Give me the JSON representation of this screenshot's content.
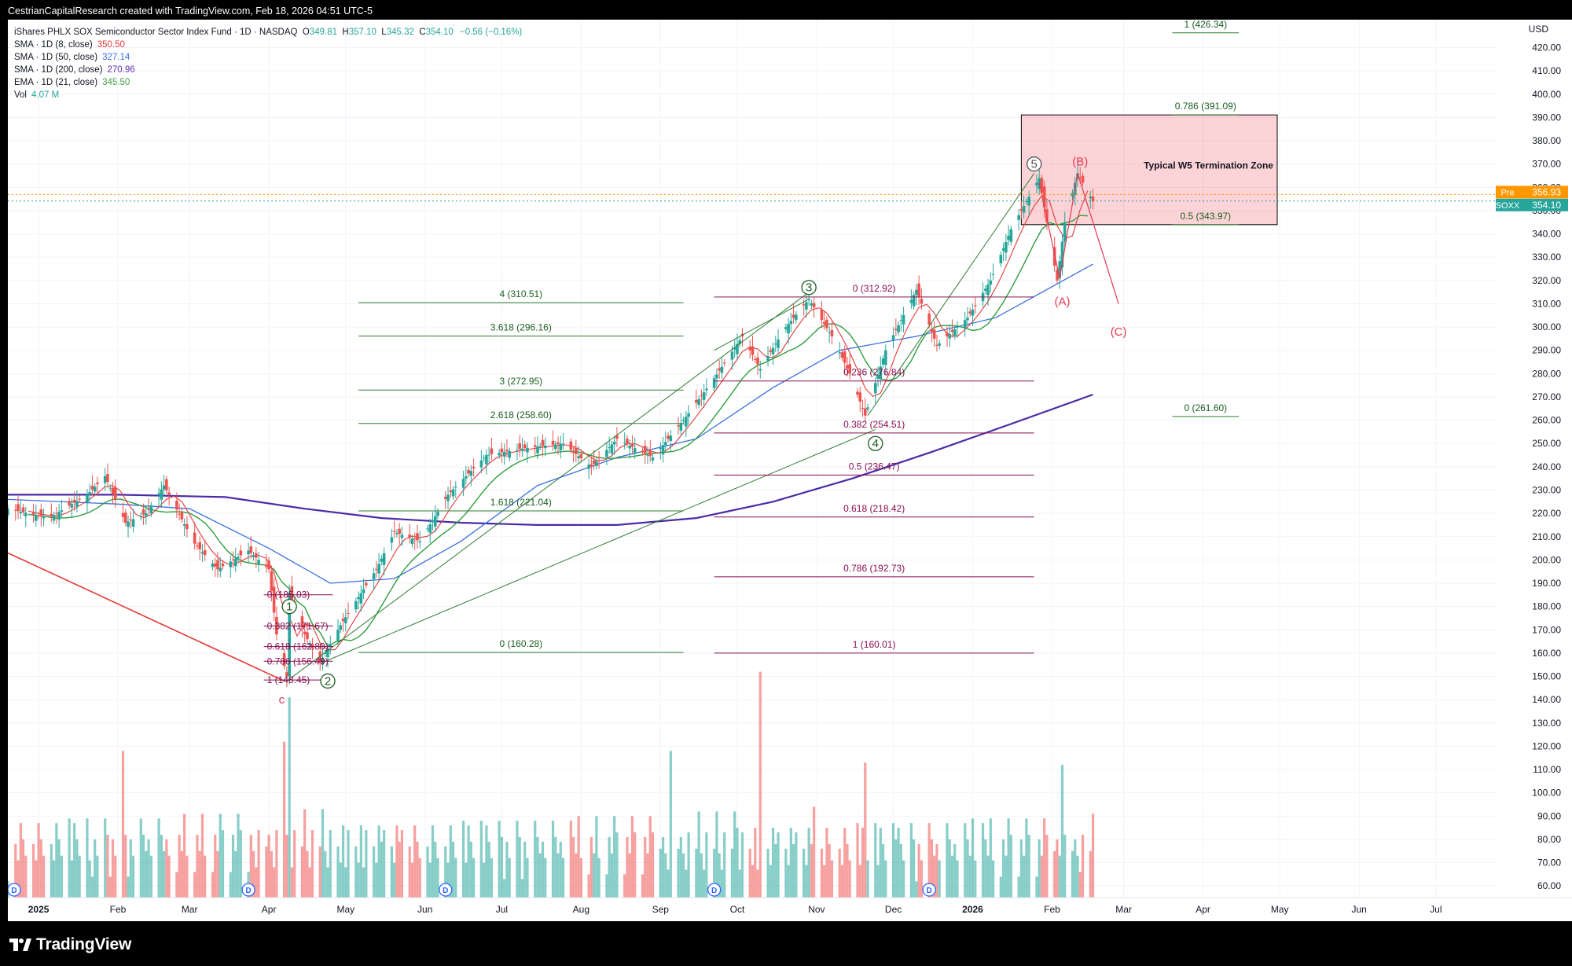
{
  "header": {
    "attribution": "CestrianCapitalResearch created with TradingView.com, Feb 18, 2026 04:51 UTC-5"
  },
  "legend": {
    "title": "iShares PHLX SOX Semiconductor Sector Index Fund · 1D · NASDAQ",
    "ohlc": {
      "o": "349.81",
      "h": "357.10",
      "l": "345.32",
      "c": "354.10",
      "chg": "−0.56 (−0.16%)"
    },
    "indicators": [
      {
        "label": "SMA · 1D (8, close)",
        "value": "350.50",
        "color": "#e53935"
      },
      {
        "label": "SMA · 1D (50, close)",
        "value": "327.14",
        "color": "#3b6fe0"
      },
      {
        "label": "SMA · 1D (200, close)",
        "value": "270.96",
        "color": "#5e35b1"
      },
      {
        "label": "EMA · 1D (21, close)",
        "value": "345.50",
        "color": "#43a047"
      },
      {
        "label": "Vol",
        "value": "4.07 M",
        "color": "#26a69a"
      }
    ]
  },
  "price_tags": {
    "pre_label": "Pre",
    "pre_value": "356.93",
    "sym_label": "SOXX",
    "sym_value": "354.10"
  },
  "zone_label": "Typical W5 Termination Zone",
  "footer": {
    "brand": "TradingView"
  },
  "chart_data": {
    "type": "candlestick",
    "symbol": "SOXX",
    "currency": "USD",
    "y_axis_ticks": [
      60,
      70,
      80,
      90,
      100,
      110,
      120,
      130,
      140,
      150,
      160,
      170,
      180,
      190,
      200,
      210,
      220,
      230,
      240,
      250,
      260,
      270,
      280,
      290,
      300,
      310,
      320,
      330,
      340,
      350,
      360,
      370,
      380,
      390,
      400,
      410,
      420
    ],
    "x_axis_labels": [
      {
        "date": "2025-01-01",
        "label": "2025",
        "bold": true
      },
      {
        "date": "2025-02-01",
        "label": "Feb"
      },
      {
        "date": "2025-03-01",
        "label": "Mar"
      },
      {
        "date": "2025-04-01",
        "label": "Apr"
      },
      {
        "date": "2025-05-01",
        "label": "May"
      },
      {
        "date": "2025-06-01",
        "label": "Jun"
      },
      {
        "date": "2025-07-01",
        "label": "Jul"
      },
      {
        "date": "2025-08-01",
        "label": "Aug"
      },
      {
        "date": "2025-09-01",
        "label": "Sep"
      },
      {
        "date": "2025-10-01",
        "label": "Oct"
      },
      {
        "date": "2025-11-01",
        "label": "Nov"
      },
      {
        "date": "2025-12-01",
        "label": "Dec"
      },
      {
        "date": "2026-01-01",
        "label": "2026",
        "bold": true
      },
      {
        "date": "2026-02-01",
        "label": "Feb"
      },
      {
        "date": "2026-03-01",
        "label": "Mar"
      },
      {
        "date": "2026-04-01",
        "label": "Apr"
      },
      {
        "date": "2026-05-01",
        "label": "May"
      },
      {
        "date": "2026-06-01",
        "label": "Jun"
      },
      {
        "date": "2026-07-01",
        "label": "Jul"
      }
    ],
    "x_range": [
      "2024-12-20",
      "2026-07-25"
    ],
    "y_range": [
      55,
      432
    ],
    "price_path": [
      [
        "2024-12-20",
        222
      ],
      [
        "2025-01-05",
        218
      ],
      [
        "2025-01-20",
        228
      ],
      [
        "2025-01-27",
        236
      ],
      [
        "2025-02-04",
        216
      ],
      [
        "2025-02-12",
        220
      ],
      [
        "2025-02-19",
        232
      ],
      [
        "2025-03-03",
        207
      ],
      [
        "2025-03-12",
        196
      ],
      [
        "2025-03-24",
        204
      ],
      [
        "2025-04-01",
        196
      ],
      [
        "2025-04-04",
        168
      ],
      [
        "2025-04-08",
        150
      ],
      [
        "2025-04-09",
        186
      ],
      [
        "2025-04-15",
        168
      ],
      [
        "2025-04-21",
        156
      ],
      [
        "2025-04-29",
        172
      ],
      [
        "2025-05-13",
        196
      ],
      [
        "2025-05-20",
        212
      ],
      [
        "2025-05-30",
        208
      ],
      [
        "2025-06-10",
        228
      ],
      [
        "2025-06-25",
        245
      ],
      [
        "2025-07-10",
        248
      ],
      [
        "2025-07-25",
        250
      ],
      [
        "2025-08-05",
        240
      ],
      [
        "2025-08-15",
        252
      ],
      [
        "2025-08-29",
        244
      ],
      [
        "2025-09-10",
        260
      ],
      [
        "2025-09-22",
        278
      ],
      [
        "2025-10-03",
        296
      ],
      [
        "2025-10-10",
        282
      ],
      [
        "2025-10-20",
        300
      ],
      [
        "2025-10-29",
        312
      ],
      [
        "2025-11-07",
        296
      ],
      [
        "2025-11-14",
        280
      ],
      [
        "2025-11-20",
        262
      ],
      [
        "2025-11-28",
        290
      ],
      [
        "2025-12-10",
        316
      ],
      [
        "2025-12-18",
        292
      ],
      [
        "2025-12-30",
        304
      ],
      [
        "2026-01-08",
        320
      ],
      [
        "2026-01-16",
        342
      ],
      [
        "2026-01-27",
        364
      ],
      [
        "2026-02-03",
        320
      ],
      [
        "2026-02-06",
        345
      ],
      [
        "2026-02-11",
        366
      ],
      [
        "2026-02-17",
        354
      ]
    ],
    "sma_200_path": [
      [
        "2024-12-20",
        228
      ],
      [
        "2025-02-01",
        228
      ],
      [
        "2025-03-15",
        227
      ],
      [
        "2025-04-15",
        222
      ],
      [
        "2025-05-15",
        218
      ],
      [
        "2025-06-15",
        216
      ],
      [
        "2025-07-15",
        215
      ],
      [
        "2025-08-15",
        215
      ],
      [
        "2025-09-15",
        218
      ],
      [
        "2025-10-15",
        225
      ],
      [
        "2025-11-15",
        235
      ],
      [
        "2025-12-15",
        246
      ],
      [
        "2026-01-15",
        258
      ],
      [
        "2026-02-17",
        271
      ]
    ],
    "sma_50_path": [
      [
        "2024-12-20",
        226
      ],
      [
        "2025-02-01",
        224
      ],
      [
        "2025-03-01",
        222
      ],
      [
        "2025-04-01",
        205
      ],
      [
        "2025-04-25",
        190
      ],
      [
        "2025-05-20",
        192
      ],
      [
        "2025-06-15",
        208
      ],
      [
        "2025-07-15",
        232
      ],
      [
        "2025-08-15",
        244
      ],
      [
        "2025-09-15",
        252
      ],
      [
        "2025-10-15",
        274
      ],
      [
        "2025-11-10",
        290
      ],
      [
        "2025-12-10",
        296
      ],
      [
        "2026-01-10",
        304
      ],
      [
        "2026-02-17",
        327
      ]
    ],
    "wave_labels": [
      {
        "date": "2025-04-09",
        "price": 180,
        "label": "1",
        "color": "#1b5e20",
        "circled": true
      },
      {
        "date": "2025-04-24",
        "price": 148,
        "label": "2",
        "color": "#1b5e20",
        "circled": true
      },
      {
        "date": "2025-10-29",
        "price": 317,
        "label": "3",
        "color": "#1b5e20",
        "circled": true
      },
      {
        "date": "2025-11-24",
        "price": 250,
        "label": "4",
        "color": "#1b5e20",
        "circled": true
      },
      {
        "date": "2026-01-25",
        "price": 370,
        "label": "5",
        "color": "#555555",
        "circled": true
      },
      {
        "date": "2026-02-12",
        "price": 371,
        "label": "(B)",
        "color": "#e53950"
      },
      {
        "date": "2026-02-05",
        "price": 311,
        "label": "(A)",
        "color": "#e53950"
      },
      {
        "date": "2026-02-27",
        "price": 298,
        "label": "(C)",
        "color": "#e53950"
      },
      {
        "date": "2025-04-06",
        "price": 140,
        "label": "c",
        "color": "#e53950"
      }
    ],
    "fib_extension": {
      "color": "#2e7d32",
      "x_from": "2025-05-06",
      "x_to": "2025-09-10",
      "levels": [
        {
          "label": "4 (310.51)",
          "price": 310.51
        },
        {
          "label": "3.618 (296.16)",
          "price": 296.16
        },
        {
          "label": "3 (272.95)",
          "price": 272.95
        },
        {
          "label": "2.618 (258.60)",
          "price": 258.6
        },
        {
          "label": "1.618 (221.04)",
          "price": 221.04
        },
        {
          "label": "0 (160.28)",
          "price": 160.28
        }
      ]
    },
    "fib_retracement_main": {
      "color": "#880e4f",
      "x_from": "2025-09-22",
      "x_to": "2026-01-25",
      "levels": [
        {
          "label": "0 (312.92)",
          "price": 312.92
        },
        {
          "label": "0.236 (276.84)",
          "price": 276.84
        },
        {
          "label": "0.382 (254.51)",
          "price": 254.51
        },
        {
          "label": "0.5 (236.47)",
          "price": 236.47
        },
        {
          "label": "0.618 (218.42)",
          "price": 218.42
        },
        {
          "label": "0.786 (192.73)",
          "price": 192.73
        },
        {
          "label": "1 (160.01)",
          "price": 160.01
        }
      ]
    },
    "fib_retracement_small": {
      "color": "#880e4f",
      "x_from": "2025-03-30",
      "x_to": "2025-04-26",
      "levels": [
        {
          "label": "0 (185.03)",
          "price": 185.03
        },
        {
          "label": "0.382 (171.67)",
          "price": 171.67
        },
        {
          "label": "0.618 (162.80)",
          "price": 162.8
        },
        {
          "label": "0.786 (156.49)",
          "price": 156.49
        },
        {
          "label": "1 (148.45)",
          "price": 148.45
        }
      ]
    },
    "fib_target": {
      "color": "#2e7d32",
      "x_from": "2026-03-20",
      "x_to": "2026-04-15",
      "levels": [
        {
          "label": "1 (426.34)",
          "price": 426.34
        },
        {
          "label": "0.786 (391.09)",
          "price": 391.09
        },
        {
          "label": "0.5 (343.97)",
          "price": 343.97
        },
        {
          "label": "0 (261.60)",
          "price": 261.6
        }
      ]
    },
    "termination_zone": {
      "date_from": "2026-01-20",
      "date_to": "2026-04-30",
      "price_top": 391.09,
      "price_bottom": 343.97
    },
    "volume_y_spikes": [
      {
        "date": "2025-02-03",
        "value": 118
      },
      {
        "date": "2025-04-07",
        "value": 122
      },
      {
        "date": "2025-04-09",
        "value": 141
      },
      {
        "date": "2025-09-05",
        "value": 118
      },
      {
        "date": "2025-10-10",
        "value": 152
      },
      {
        "date": "2025-11-20",
        "value": 113
      },
      {
        "date": "2026-02-05",
        "value": 112
      }
    ],
    "dividend_markers": [
      "2024-12-20",
      "2025-03-24",
      "2025-06-09",
      "2025-09-22",
      "2025-12-15"
    ],
    "dividend_glyph": "D"
  }
}
